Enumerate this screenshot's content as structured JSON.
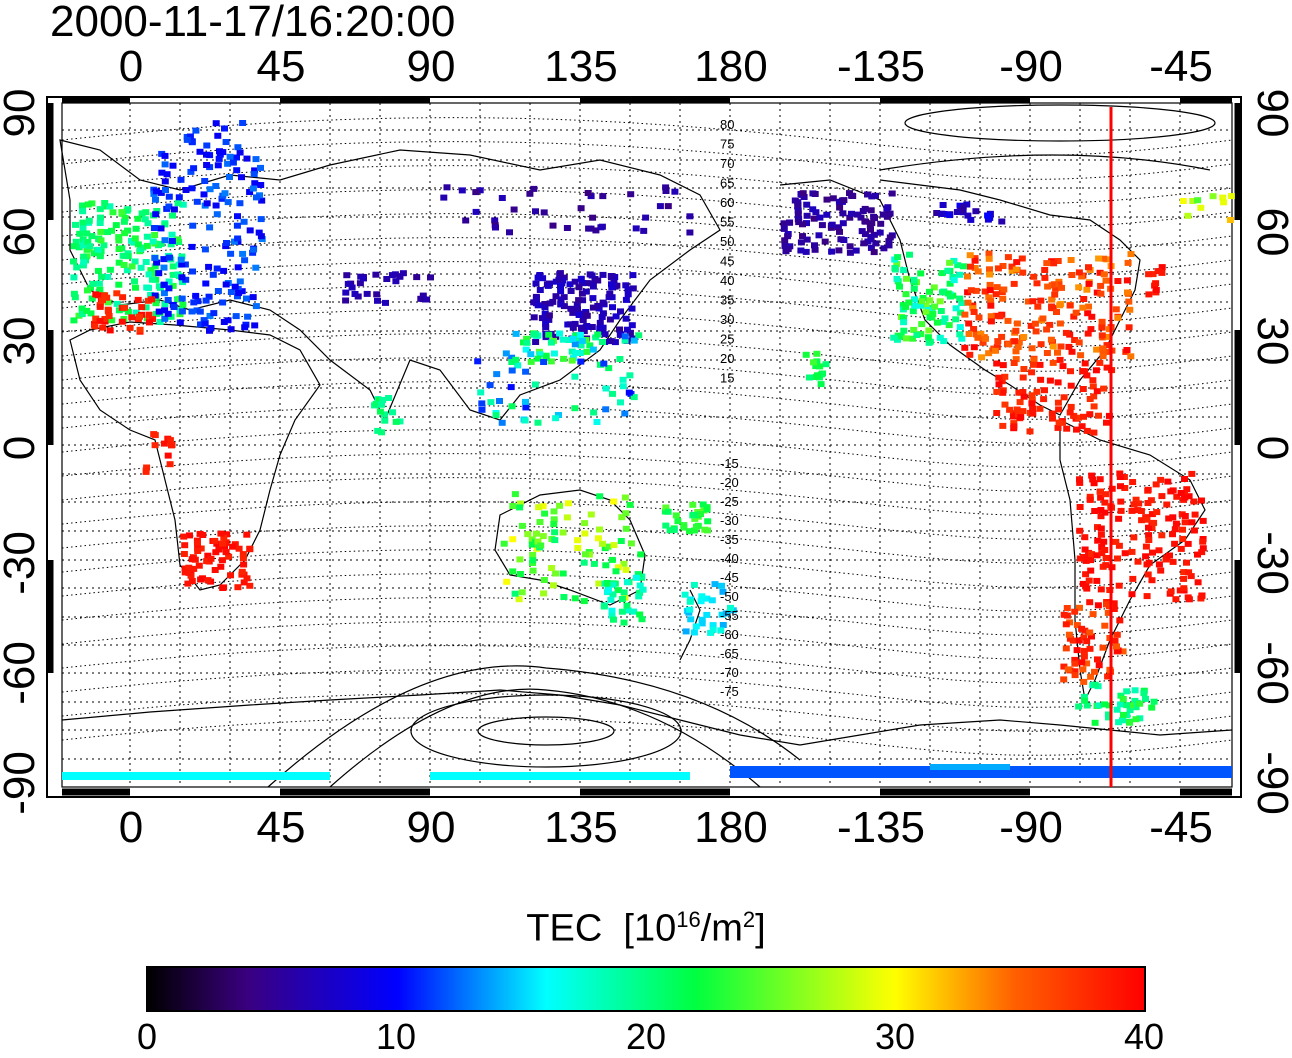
{
  "timestamp": "2000-11-17/16:20:00",
  "map": {
    "x_ticks": [
      "0",
      "45",
      "90",
      "135",
      "180",
      "-135",
      "-90",
      "-45"
    ],
    "y_ticks": [
      "90",
      "60",
      "30",
      "0",
      "-30",
      "-60",
      "-90"
    ],
    "contour_labels_north": [
      "80",
      "75",
      "70",
      "65",
      "60",
      "55",
      "50",
      "45",
      "40",
      "35",
      "30",
      "25",
      "20",
      "15"
    ],
    "contour_labels_south": [
      "-15",
      "-20",
      "-25",
      "-30",
      "-35",
      "-40",
      "-45",
      "-50",
      "-55",
      "-60",
      "-65",
      "-70",
      "-75"
    ],
    "terminator_color": "#ff0000"
  },
  "colorbar": {
    "title": "TEC",
    "unit_prefix": "[10",
    "unit_exp": "16",
    "unit_mid": "/m",
    "unit_exp2": "2",
    "unit_suffix": "]",
    "ticks": [
      "0",
      "10",
      "20",
      "30",
      "40"
    ],
    "range": [
      0,
      40
    ]
  }
}
